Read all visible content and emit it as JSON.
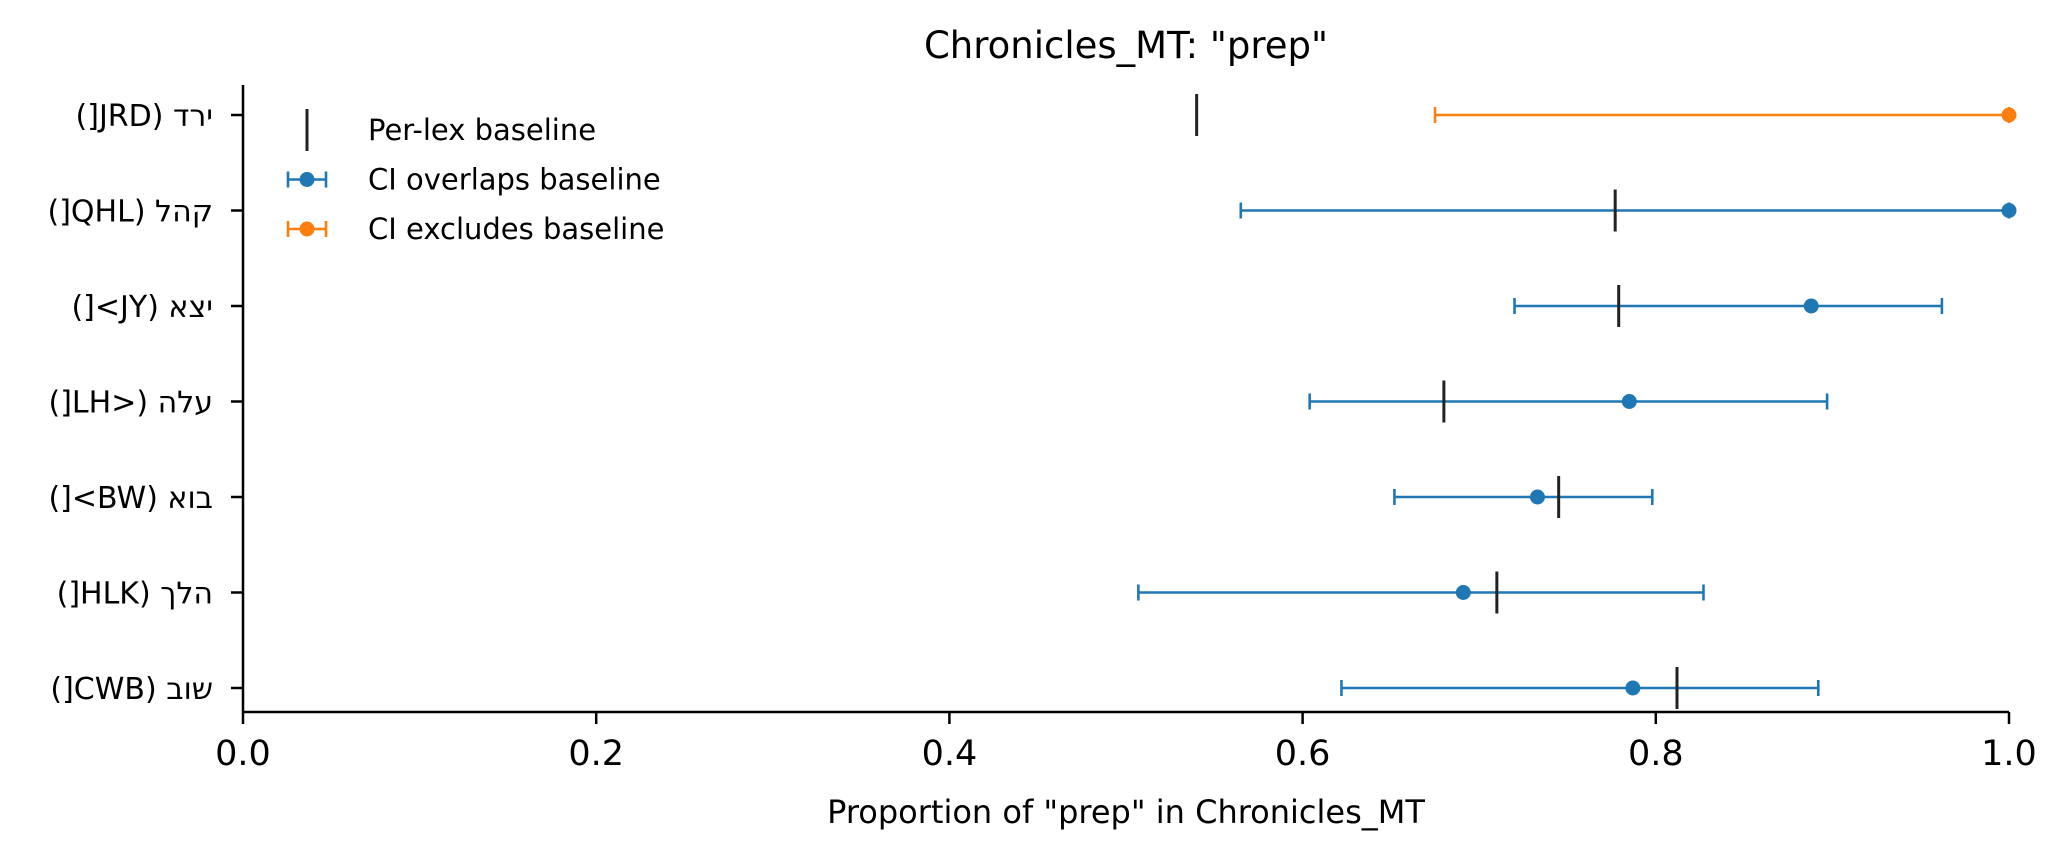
{
  "chart_data": {
    "type": "errorbar",
    "title": "Chronicles_MT: \"prep\"",
    "xlabel": "Proportion of \"prep\" in Chronicles_MT",
    "ylabel": "",
    "xlim": [
      0.0,
      1.0
    ],
    "xticks": [
      "0.0",
      "0.2",
      "0.4",
      "0.6",
      "0.8",
      "1.0"
    ],
    "xtick_values": [
      0.0,
      0.2,
      0.4,
      0.6,
      0.8,
      1.0
    ],
    "grid": false,
    "legend": {
      "placement": "top-left",
      "entries": [
        "Per-lex baseline",
        "CI overlaps baseline",
        "CI excludes baseline"
      ]
    },
    "colors": {
      "overlaps": "#1f77b4",
      "excludes": "#ff7f0e",
      "baseline": "#222222"
    },
    "rows": [
      {
        "label": "ירד (JRD[)",
        "estimate": 1.0,
        "ci_low": 0.675,
        "ci_high": 1.0,
        "baseline": 0.54,
        "status": "excludes"
      },
      {
        "label": "קהל (QHL[)",
        "estimate": 1.0,
        "ci_low": 0.565,
        "ci_high": 1.0,
        "baseline": 0.777,
        "status": "overlaps"
      },
      {
        "label": "יצא (JY>[)",
        "estimate": 0.888,
        "ci_low": 0.72,
        "ci_high": 0.962,
        "baseline": 0.779,
        "status": "overlaps"
      },
      {
        "label": "עלה (<LH[)",
        "estimate": 0.785,
        "ci_low": 0.604,
        "ci_high": 0.897,
        "baseline": 0.68,
        "status": "overlaps"
      },
      {
        "label": "בוא (BW>[)",
        "estimate": 0.733,
        "ci_low": 0.652,
        "ci_high": 0.798,
        "baseline": 0.745,
        "status": "overlaps"
      },
      {
        "label": "הלך (HLK[)",
        "estimate": 0.691,
        "ci_low": 0.507,
        "ci_high": 0.827,
        "baseline": 0.71,
        "status": "overlaps"
      },
      {
        "label": "שוב (CWB[)",
        "estimate": 0.787,
        "ci_low": 0.622,
        "ci_high": 0.892,
        "baseline": 0.812,
        "status": "overlaps"
      }
    ]
  }
}
